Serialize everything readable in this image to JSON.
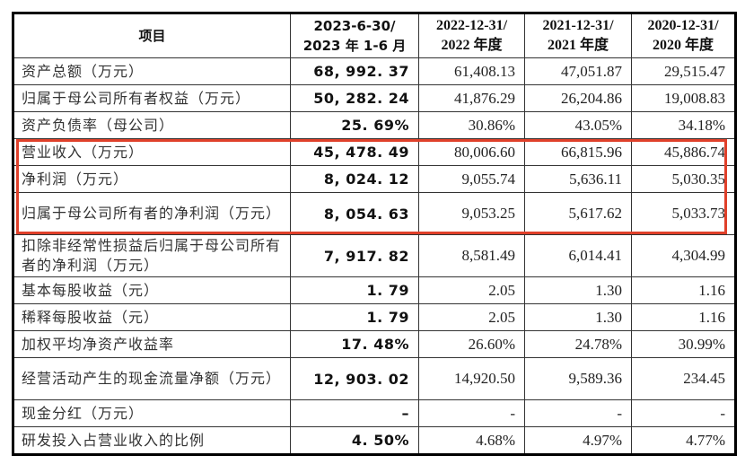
{
  "table": {
    "headers": {
      "item": "项目",
      "h1_2023_line1": "2023-6-30/",
      "h1_2023_line2": "2023 年 1-6 月",
      "y2022_line1": "2022-12-31/",
      "y2022_line2": "2022 年度",
      "y2021_line1": "2021-12-31/",
      "y2021_line2": "2021 年度",
      "y2020_line1": "2020-12-31/",
      "y2020_line2": "2020 年度"
    },
    "rows": [
      {
        "item": "资产总额（万元）",
        "h1_2023": "68, 992. 37",
        "y2022": "61,408.13",
        "y2021": "47,051.87",
        "y2020": "29,515.47"
      },
      {
        "item": "归属于母公司所有者权益（万元）",
        "h1_2023": "50, 282. 24",
        "y2022": "41,876.29",
        "y2021": "26,204.86",
        "y2020": "19,008.83"
      },
      {
        "item": "资产负债率（母公司）",
        "h1_2023": "25. 69%",
        "y2022": "30.86%",
        "y2021": "43.05%",
        "y2020": "34.18%"
      },
      {
        "item": "营业收入（万元）",
        "h1_2023": "45, 478. 49",
        "y2022": "80,006.60",
        "y2021": "66,815.96",
        "y2020": "45,886.74"
      },
      {
        "item": "净利润（万元）",
        "h1_2023": "8, 024. 12",
        "y2022": "9,055.74",
        "y2021": "5,636.11",
        "y2020": "5,030.35"
      },
      {
        "item": "归属于母公司所有者的净利润（万元）",
        "h1_2023": "8, 054. 63",
        "y2022": "9,053.25",
        "y2021": "5,617.62",
        "y2020": "5,033.73"
      },
      {
        "item": "扣除非经常性损益后归属于母公司所有者的净利润（万元）",
        "h1_2023": "7, 917. 82",
        "y2022": "8,581.49",
        "y2021": "6,014.41",
        "y2020": "4,304.99"
      },
      {
        "item": "基本每股收益（元）",
        "h1_2023": "1. 79",
        "y2022": "2.05",
        "y2021": "1.30",
        "y2020": "1.16"
      },
      {
        "item": "稀释每股收益（元）",
        "h1_2023": "1. 79",
        "y2022": "2.05",
        "y2021": "1.30",
        "y2020": "1.16"
      },
      {
        "item": "加权平均净资产收益率",
        "h1_2023": "17. 48%",
        "y2022": "26.60%",
        "y2021": "24.78%",
        "y2020": "30.99%"
      },
      {
        "item": "经营活动产生的现金流量净额（万元）",
        "h1_2023": "12, 903. 02",
        "y2022": "14,920.50",
        "y2021": "9,589.36",
        "y2020": "234.45"
      },
      {
        "item": "现金分红（万元）",
        "h1_2023": "–",
        "y2022": "-",
        "y2021": "-",
        "y2020": "-"
      },
      {
        "item": "研发投入占营业收入的比例",
        "h1_2023": "4. 50%",
        "y2022": "4.68%",
        "y2021": "4.97%",
        "y2020": "4.77%"
      }
    ],
    "highlight": {
      "color": "#e0402a",
      "rows": [
        "营业收入（万元）",
        "净利润（万元）",
        "归属于母公司所有者的净利润（万元）"
      ]
    }
  }
}
